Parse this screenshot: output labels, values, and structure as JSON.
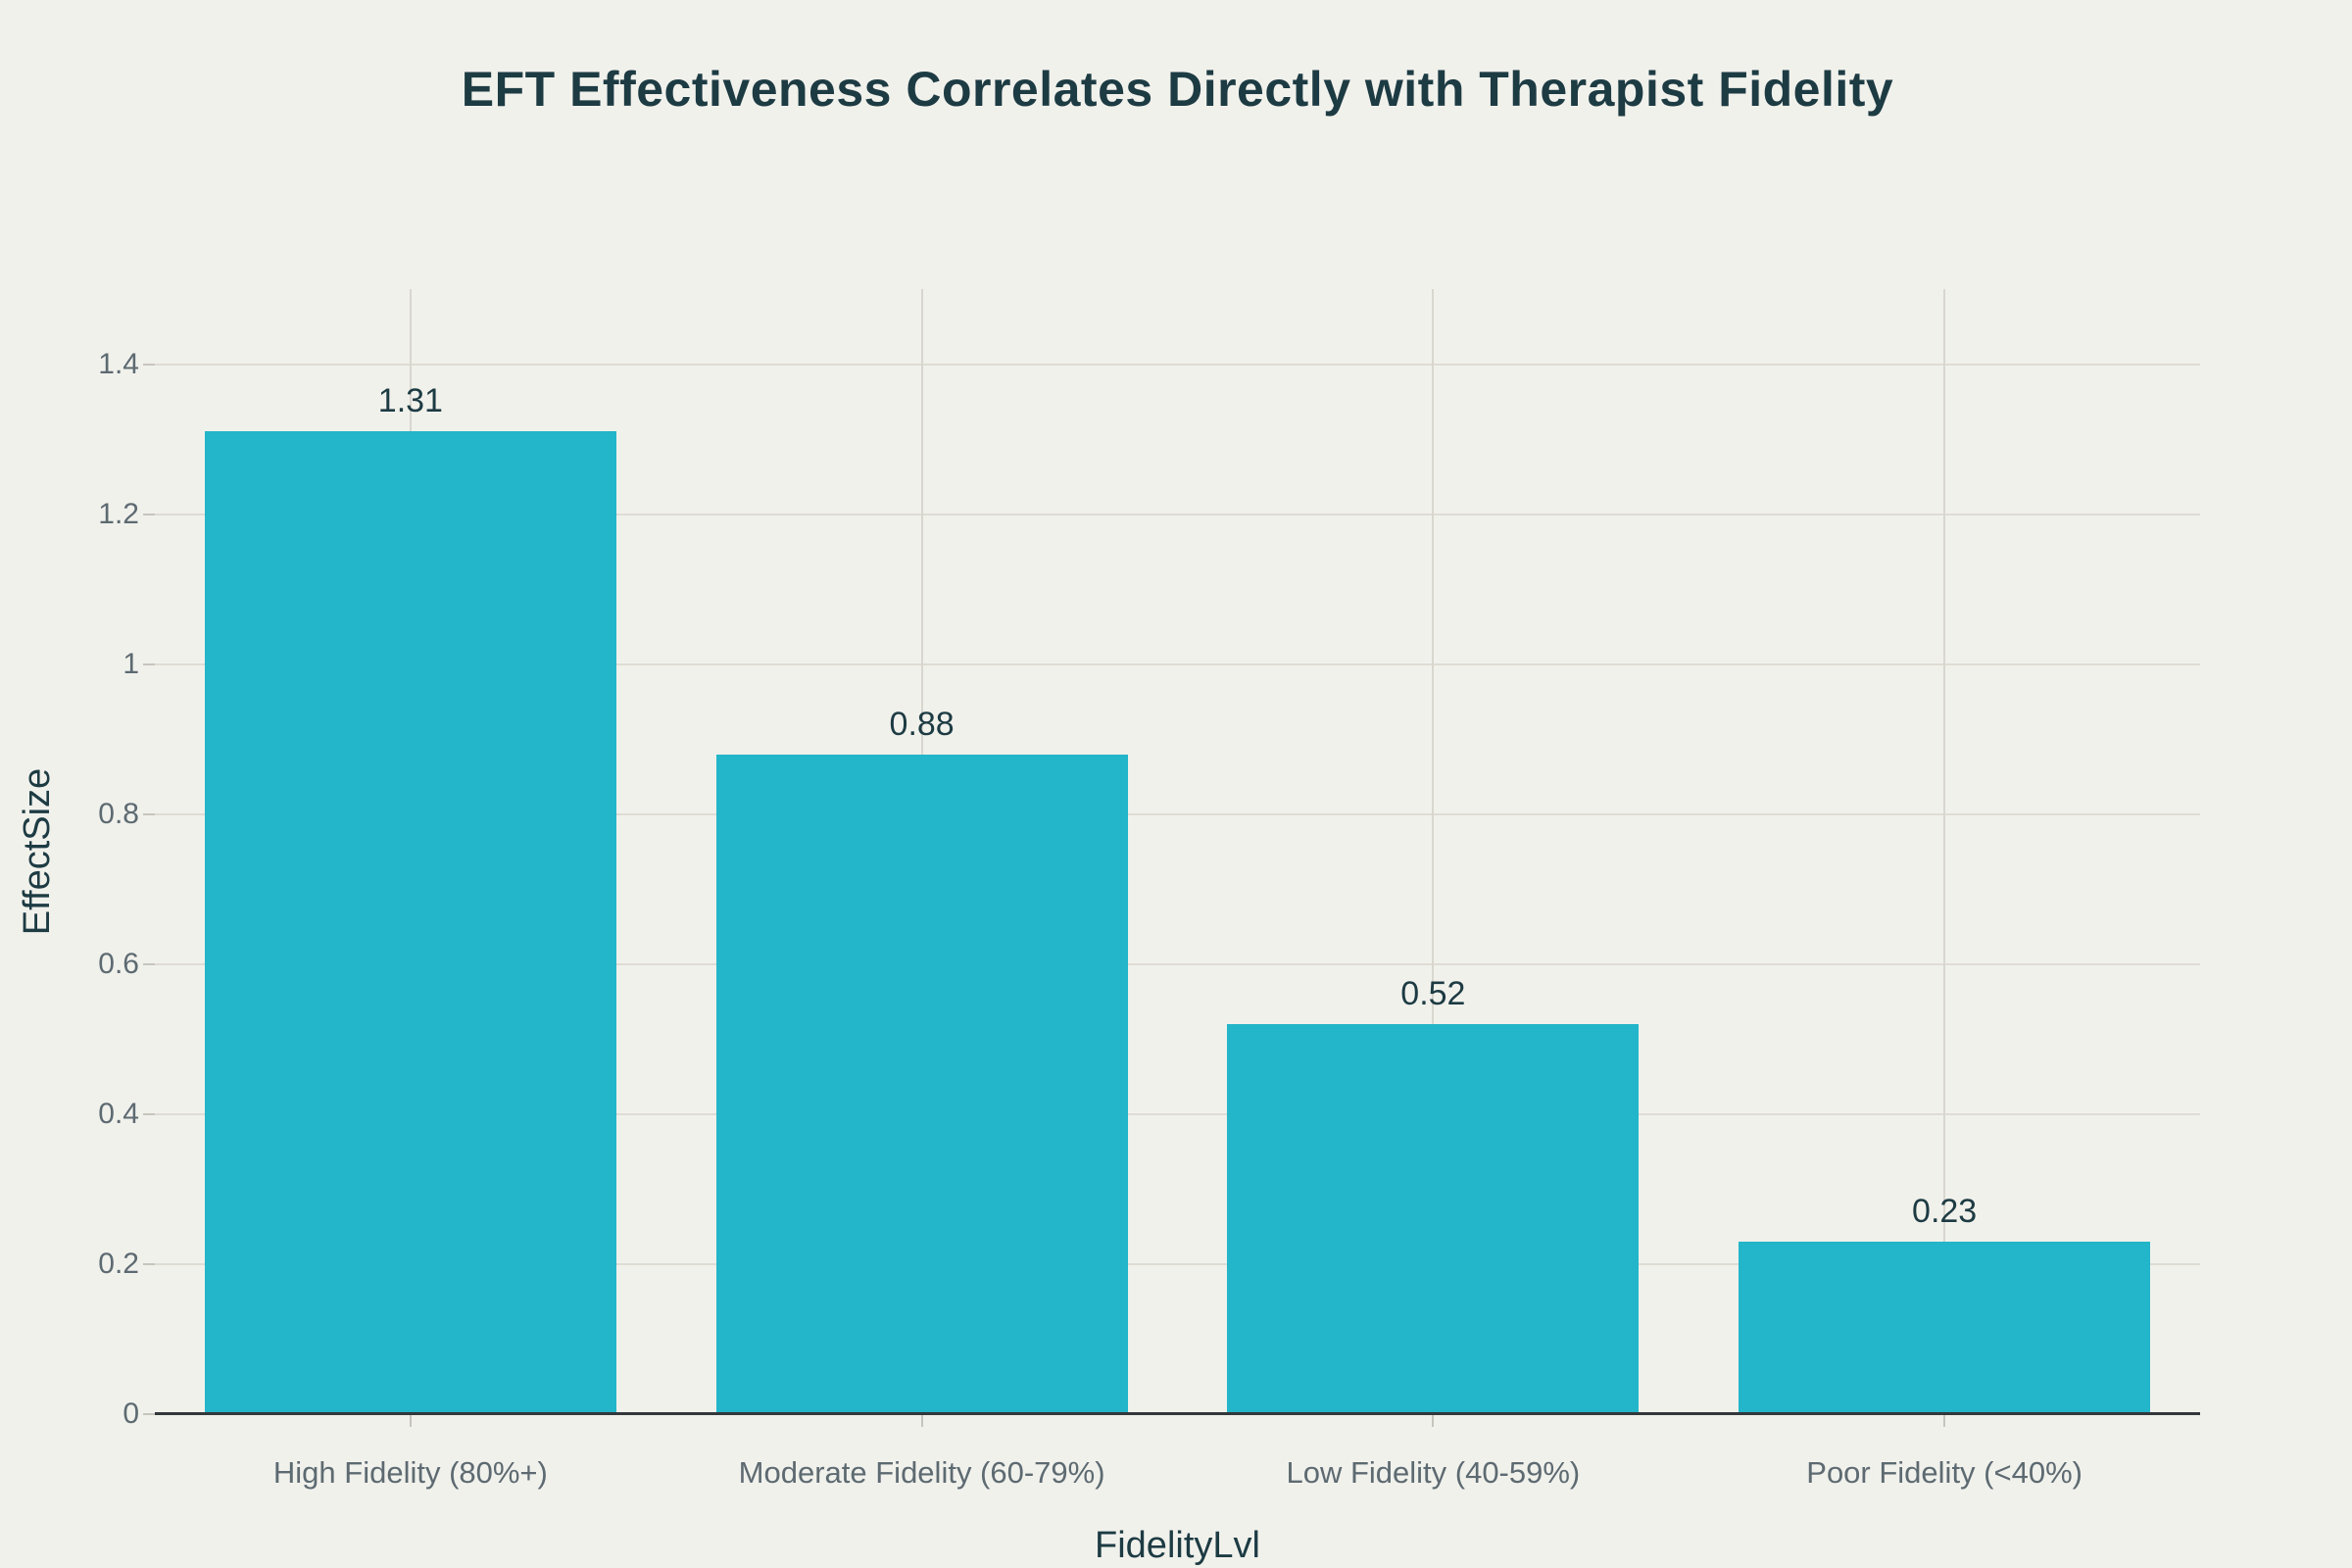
{
  "chart_data": {
    "type": "bar",
    "title": "EFT Effectiveness Correlates Directly with Therapist Fidelity",
    "xlabel": "FidelityLvl",
    "ylabel": "EffectSize",
    "categories": [
      "High Fidelity (80%+)",
      "Moderate Fidelity (60-79%)",
      "Low Fidelity (40-59%)",
      "Poor Fidelity (<40%)"
    ],
    "values": [
      1.31,
      0.88,
      0.52,
      0.23
    ],
    "value_labels": [
      "1.31",
      "0.88",
      "0.52",
      "0.23"
    ],
    "yticks": [
      "0",
      "0.2",
      "0.4",
      "0.6",
      "0.8",
      "1",
      "1.2",
      "1.4"
    ],
    "ylim": [
      0,
      1.5
    ],
    "grid": true,
    "legend_position": "none",
    "colors": {
      "background": "#f1f1ec",
      "bar": "#23b5c9",
      "title_text": "#1d3b43",
      "axis_title_text": "#1d3b43",
      "value_label_text": "#1d3b43",
      "tick_label_text": "#5d6a71",
      "h_gridline": "#dedcd4",
      "v_gridline": "#d8d6ce",
      "tick_mark": "#c6c5bd",
      "axis_line": "#33383b"
    }
  }
}
